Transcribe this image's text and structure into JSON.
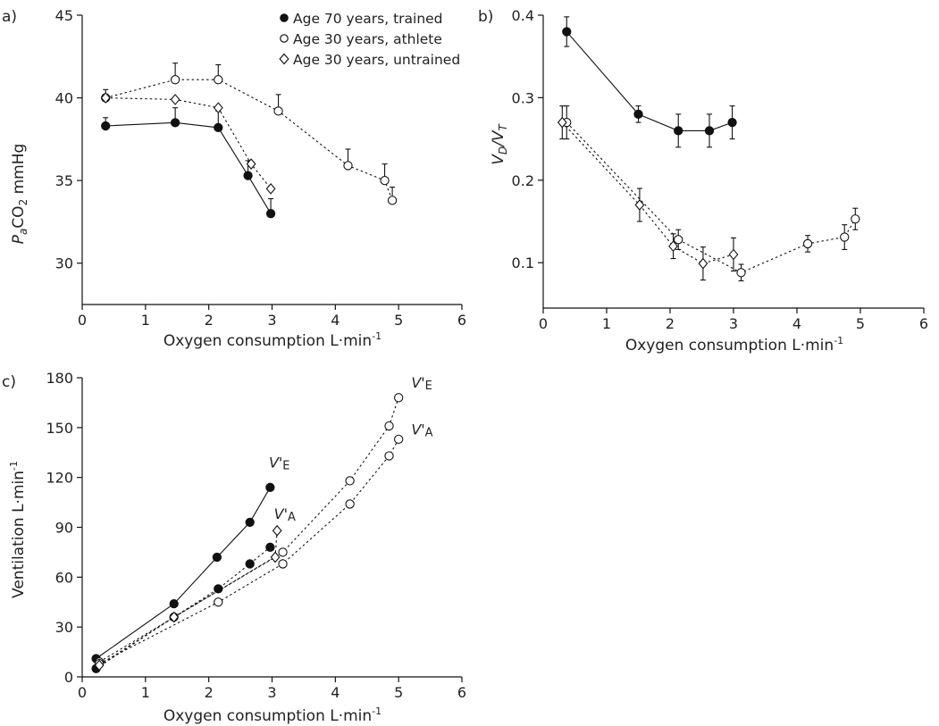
{
  "panels": {
    "a": {
      "panel_label": "a)",
      "ylabel": {
        "italic": "P",
        "sub1": "a",
        "mid": "CO",
        "sub2": "2",
        "tail": " mmHg"
      },
      "xlabel": "Oxygen consumption L·min",
      "xlabel_sup": "-1"
    },
    "b": {
      "panel_label": "b)",
      "ylabel": {
        "part1": "V",
        "sub1": "D",
        "slash": "/V",
        "sub2": "T"
      },
      "xlabel": "Oxygen consumption L·min",
      "xlabel_sup": "-1"
    },
    "c": {
      "panel_label": "c)",
      "ylabel": "Ventilation L·min",
      "ylabel_sup": "-1",
      "xlabel": "Oxygen consumption L·min",
      "xlabel_sup": "-1",
      "annotations": [
        {
          "id": "ve-70",
          "main": "V'",
          "sub": "E",
          "x": 2.95,
          "y": 126
        },
        {
          "id": "va-70",
          "main": "V'",
          "sub": "A",
          "x": 3.03,
          "y": 95
        },
        {
          "id": "ve-30",
          "main": "V'",
          "sub": "E",
          "x": 5.2,
          "y": 174
        },
        {
          "id": "va-30",
          "main": "V'",
          "sub": "A",
          "x": 5.2,
          "y": 146
        }
      ]
    }
  },
  "legend": {
    "position": "top-right of panel a",
    "items": [
      {
        "marker": "filled-circle",
        "label": "Age 70 years, trained"
      },
      {
        "marker": "open-circle",
        "label": "Age 30 years, athlete"
      },
      {
        "marker": "open-diamond",
        "label": "Age 30 years, untrained"
      }
    ]
  },
  "chart_data": [
    {
      "panel": "a",
      "type": "line",
      "xlim": [
        0,
        6
      ],
      "ylim": [
        27.5,
        45
      ],
      "xticks": [
        0,
        1,
        2,
        3,
        4,
        5,
        6
      ],
      "yticks": [
        30,
        35,
        40,
        45
      ],
      "grid": false,
      "series": [
        {
          "name": "Age 70 years, trained",
          "marker": "filled-circle",
          "line": "solid",
          "points": [
            {
              "x": 0.37,
              "y": 38.3,
              "err": 0.5
            },
            {
              "x": 1.47,
              "y": 38.5,
              "err": 0.9
            },
            {
              "x": 2.15,
              "y": 38.2,
              "err": 1.0
            },
            {
              "x": 2.62,
              "y": 35.3,
              "err": 0.9
            },
            {
              "x": 2.98,
              "y": 33.0,
              "err": 0.9
            }
          ]
        },
        {
          "name": "Age 30 years, athlete",
          "marker": "open-circle",
          "line": "dotted",
          "points": [
            {
              "x": 0.37,
              "y": 40.0,
              "err": 0.5
            },
            {
              "x": 1.47,
              "y": 41.1,
              "err": 1.0
            },
            {
              "x": 2.15,
              "y": 41.1,
              "err": 0.9
            },
            {
              "x": 3.1,
              "y": 39.2,
              "err": 1.0
            },
            {
              "x": 4.2,
              "y": 35.9,
              "err": 1.0
            },
            {
              "x": 4.78,
              "y": 35.0,
              "err": 1.0
            },
            {
              "x": 4.9,
              "y": 33.8,
              "err": 0.8
            }
          ]
        },
        {
          "name": "Age 30 years, untrained",
          "marker": "open-diamond",
          "line": "dotted",
          "points": [
            {
              "x": 0.37,
              "y": 40.0
            },
            {
              "x": 1.47,
              "y": 39.9
            },
            {
              "x": 2.15,
              "y": 39.4
            },
            {
              "x": 2.67,
              "y": 36.0
            },
            {
              "x": 2.98,
              "y": 34.5
            }
          ]
        }
      ]
    },
    {
      "panel": "b",
      "type": "line",
      "xlim": [
        0,
        6
      ],
      "ylim": [
        0.045,
        0.4
      ],
      "xticks": [
        0,
        1,
        2,
        3,
        4,
        5,
        6
      ],
      "yticks": [
        0.1,
        0.2,
        0.3,
        0.4
      ],
      "grid": false,
      "series": [
        {
          "name": "Age 70 years, trained",
          "marker": "filled-circle",
          "line": "solid",
          "points": [
            {
              "x": 0.37,
              "y": 0.38,
              "err": 0.018
            },
            {
              "x": 1.5,
              "y": 0.28,
              "err": 0.01
            },
            {
              "x": 2.13,
              "y": 0.26,
              "err": 0.02
            },
            {
              "x": 2.62,
              "y": 0.26,
              "err": 0.02
            },
            {
              "x": 2.98,
              "y": 0.27,
              "err": 0.02
            }
          ]
        },
        {
          "name": "Age 30 years, athlete",
          "marker": "open-circle",
          "line": "dotted",
          "points": [
            {
              "x": 0.37,
              "y": 0.27,
              "err": 0.02
            },
            {
              "x": 2.13,
              "y": 0.128,
              "err": 0.012
            },
            {
              "x": 3.12,
              "y": 0.088,
              "err": 0.01
            },
            {
              "x": 4.17,
              "y": 0.123,
              "err": 0.01
            },
            {
              "x": 4.75,
              "y": 0.131,
              "err": 0.015
            },
            {
              "x": 4.92,
              "y": 0.153,
              "err": 0.013
            }
          ]
        },
        {
          "name": "Age 30 years, untrained",
          "marker": "open-diamond",
          "line": "dotted",
          "points": [
            {
              "x": 0.3,
              "y": 0.27,
              "err": 0.02
            },
            {
              "x": 1.52,
              "y": 0.17,
              "err": 0.02
            },
            {
              "x": 2.05,
              "y": 0.12,
              "err": 0.015
            },
            {
              "x": 2.52,
              "y": 0.099,
              "err": 0.02
            },
            {
              "x": 3.0,
              "y": 0.11,
              "err": 0.02
            }
          ]
        }
      ]
    },
    {
      "panel": "c",
      "type": "line",
      "xlim": [
        0,
        6
      ],
      "ylim": [
        0,
        180
      ],
      "xticks": [
        0,
        1,
        2,
        3,
        4,
        5,
        6
      ],
      "yticks": [
        0,
        30,
        60,
        90,
        120,
        150,
        180
      ],
      "grid": false,
      "series": [
        {
          "marker": "filled-circle",
          "line": "solid",
          "label_ref": "ve-70",
          "points": [
            {
              "x": 0.22,
              "y": 11
            },
            {
              "x": 1.45,
              "y": 44
            },
            {
              "x": 2.13,
              "y": 72
            },
            {
              "x": 2.65,
              "y": 93
            },
            {
              "x": 2.97,
              "y": 114
            }
          ]
        },
        {
          "marker": "filled-circle",
          "line": "dotted",
          "label_ref": "va-70",
          "points": [
            {
              "x": 0.22,
              "y": 5
            },
            {
              "x": 1.45,
              "y": 36
            },
            {
              "x": 2.15,
              "y": 53
            },
            {
              "x": 2.65,
              "y": 68
            },
            {
              "x": 2.97,
              "y": 78
            }
          ]
        },
        {
          "marker": "open-circle",
          "line": "dotted",
          "label_ref": "ve-30",
          "points": [
            {
              "x": 0.27,
              "y": 9
            },
            {
              "x": 3.17,
              "y": 75
            },
            {
              "x": 4.23,
              "y": 118
            },
            {
              "x": 4.85,
              "y": 151
            },
            {
              "x": 5.0,
              "y": 168
            }
          ]
        },
        {
          "marker": "open-circle",
          "line": "dotted",
          "label_ref": "va-30",
          "points": [
            {
              "x": 0.27,
              "y": 8
            },
            {
              "x": 2.15,
              "y": 45
            },
            {
              "x": 3.17,
              "y": 68
            },
            {
              "x": 4.23,
              "y": 104
            },
            {
              "x": 4.85,
              "y": 133
            },
            {
              "x": 5.0,
              "y": 143
            }
          ]
        },
        {
          "marker": "open-diamond",
          "line": "dotted",
          "points": [
            {
              "x": 0.27,
              "y": 7
            },
            {
              "x": 1.45,
              "y": 36
            },
            {
              "x": 3.05,
              "y": 72
            },
            {
              "x": 3.08,
              "y": 88
            }
          ]
        }
      ]
    }
  ]
}
